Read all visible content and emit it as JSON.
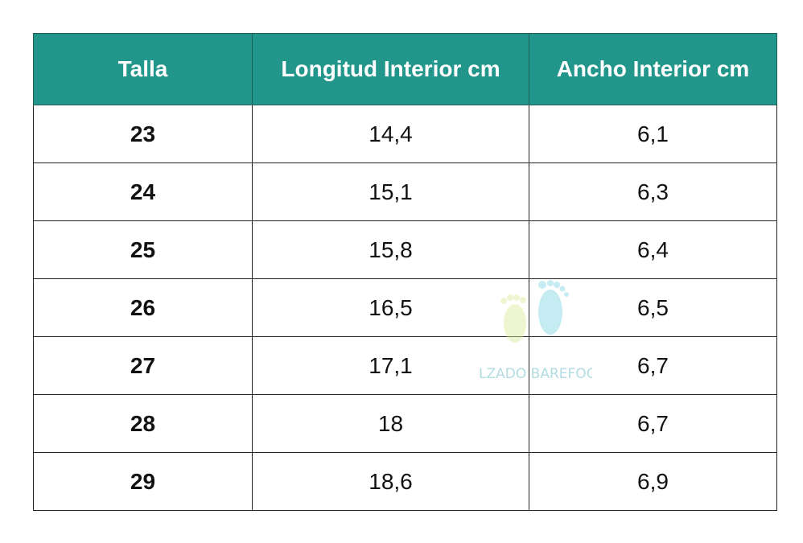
{
  "table": {
    "header": [
      "Talla",
      "Longitud Interior cm",
      "Ancho Interior cm"
    ],
    "rows": [
      [
        "23",
        "14,4",
        "6,1"
      ],
      [
        "24",
        "15,1",
        "6,3"
      ],
      [
        "25",
        "15,8",
        "6,4"
      ],
      [
        "26",
        "16,5",
        "6,5"
      ],
      [
        "27",
        "17,1",
        "6,7"
      ],
      [
        "28",
        "18",
        "6,7"
      ],
      [
        "29",
        "18,6",
        "6,9"
      ]
    ]
  },
  "watermark": {
    "text": "CALZADO BAREFOOT"
  }
}
